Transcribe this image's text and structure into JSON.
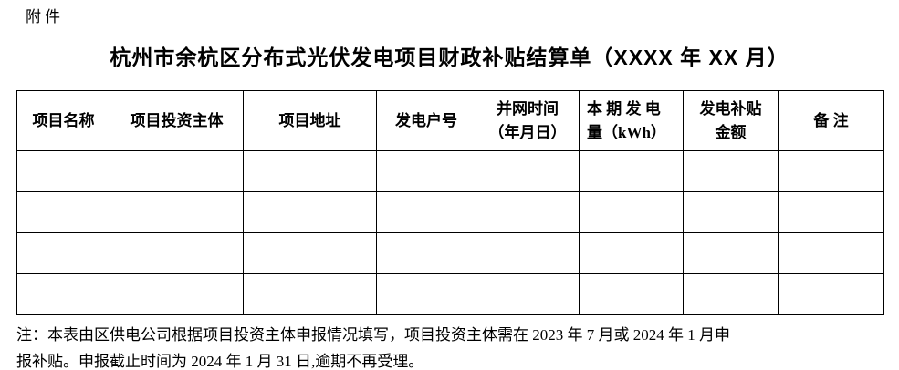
{
  "page": {
    "attachment_label": "附件",
    "title": "杭州市余杭区分布式光伏发电项目财政补贴结算单（XXXX 年 XX 月）"
  },
  "table": {
    "columns": [
      {
        "label": "项目名称"
      },
      {
        "label": "项目投资主体"
      },
      {
        "label": "项目地址"
      },
      {
        "label": "发电户号"
      },
      {
        "label": "并网时间\n（年月日）"
      },
      {
        "label": "本 期 发 电\n量（kWh）"
      },
      {
        "label": "发电补贴\n金额"
      },
      {
        "label": "备 注"
      }
    ],
    "empty_row_count": 4,
    "column_count": 8
  },
  "note": {
    "lines": [
      "注：本表由区供电公司根据项目投资主体申报情况填写，项目投资主体需在 2023 年 7 月或 2024 年 1 月申",
      "报补贴。申报截止时间为 2024 年 1 月 31 日,逾期不再受理。"
    ]
  },
  "colors": {
    "text": "#000000",
    "background": "#ffffff",
    "table_border": "#000000"
  }
}
